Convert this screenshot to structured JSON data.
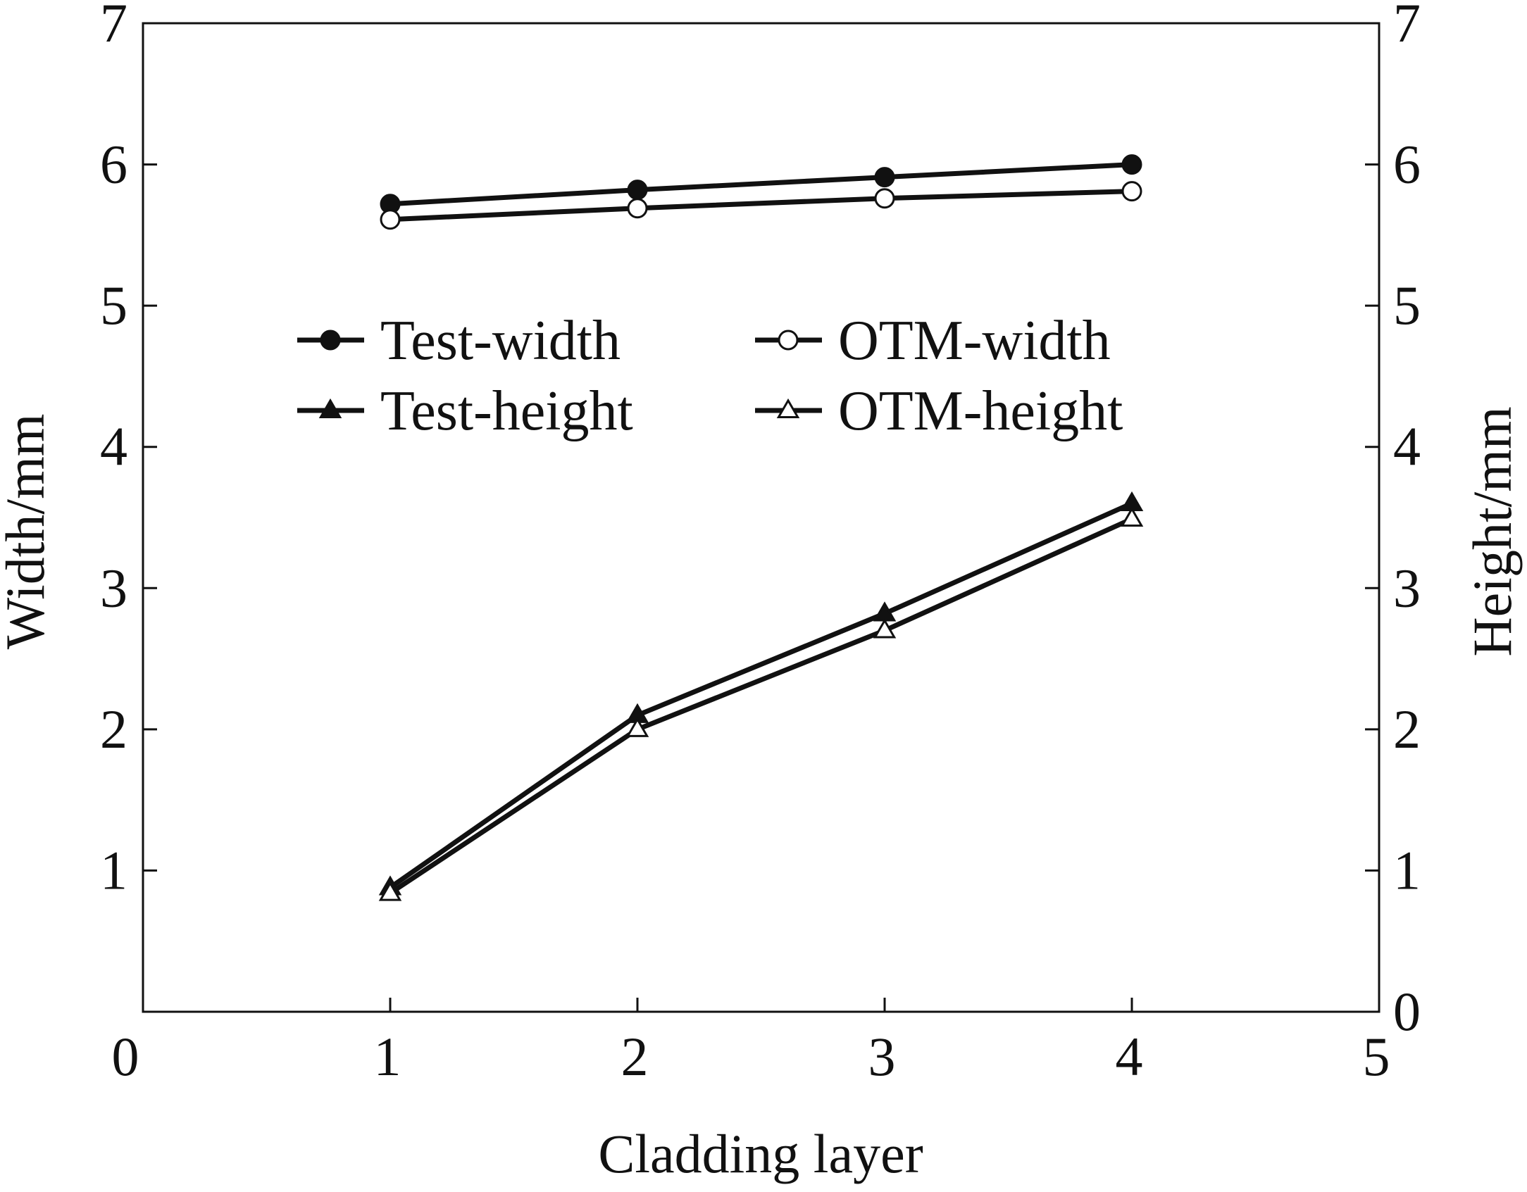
{
  "chart_data": {
    "type": "line",
    "xlabel": "Cladding layer",
    "ylabel": "Width/mm",
    "ylabel_right": "Height/mm",
    "xlim": [
      0,
      5
    ],
    "ylim": [
      0,
      7
    ],
    "ylim_right": [
      0,
      7
    ],
    "x_ticks": [
      "0",
      "1",
      "2",
      "3",
      "4",
      "5"
    ],
    "y_ticks": [
      "1",
      "2",
      "3",
      "4",
      "5",
      "6",
      "7"
    ],
    "y_ticks_right": [
      "0",
      "1",
      "2",
      "3",
      "4",
      "5",
      "6",
      "7"
    ],
    "grid": false,
    "legend_position": "upper-center",
    "legend_columns": 2,
    "x": [
      1,
      2,
      3,
      4
    ],
    "series": [
      {
        "name": "Test-width",
        "axis": "left",
        "marker": "circle-filled",
        "values": [
          5.72,
          5.82,
          5.91,
          6.0
        ]
      },
      {
        "name": "OTM-width",
        "axis": "left",
        "marker": "circle-open",
        "values": [
          5.61,
          5.69,
          5.76,
          5.81
        ]
      },
      {
        "name": "Test-height",
        "axis": "right",
        "marker": "triangle-filled",
        "values": [
          0.88,
          2.1,
          2.82,
          3.6
        ]
      },
      {
        "name": "OTM-height",
        "axis": "right",
        "marker": "triangle-open",
        "values": [
          0.84,
          2.0,
          2.7,
          3.49
        ]
      }
    ],
    "colors": {
      "line": "#111111",
      "background": "#ffffff"
    }
  }
}
